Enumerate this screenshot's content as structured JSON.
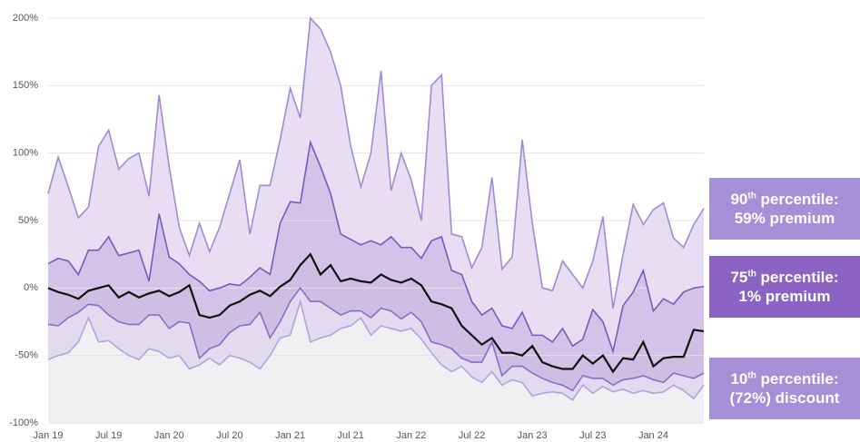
{
  "chart_data": {
    "type": "band-line",
    "categories": [
      "Jan 19",
      null,
      null,
      null,
      null,
      null,
      "Jul 19",
      null,
      null,
      null,
      null,
      null,
      "Jan 20",
      null,
      null,
      null,
      null,
      null,
      "Jul 20",
      null,
      null,
      null,
      null,
      null,
      "Jan 21",
      null,
      null,
      null,
      null,
      null,
      "Jul 21",
      null,
      null,
      null,
      null,
      null,
      "Jan 22",
      null,
      null,
      null,
      null,
      null,
      "Jul 22",
      null,
      null,
      null,
      null,
      null,
      "Jan 23",
      null,
      null,
      null,
      null,
      null,
      "Jul 23",
      null,
      null,
      null,
      null,
      null,
      "Jan 24",
      null,
      null,
      null,
      null,
      null
    ],
    "ylim": [
      -100,
      200
    ],
    "yticks": [
      {
        "value": -100,
        "label": "-100%"
      },
      {
        "value": -50,
        "label": "-50%"
      },
      {
        "value": 0,
        "label": "0%"
      },
      {
        "value": 50,
        "label": "50%"
      },
      {
        "value": 100,
        "label": "100%"
      },
      {
        "value": 150,
        "label": "150%"
      },
      {
        "value": 200,
        "label": "200%"
      }
    ],
    "grid": true,
    "series": [
      {
        "color": "#a28ad2",
        "fill": "#e8def3",
        "values": [
          70,
          97,
          75,
          52,
          60,
          105,
          117,
          88,
          96,
          100,
          68,
          143,
          90,
          45,
          24,
          48,
          27,
          45,
          70,
          95,
          40,
          76,
          76,
          110,
          148,
          126,
          200,
          192,
          175,
          150,
          105,
          75,
          100,
          161,
          72,
          100,
          80,
          50,
          150,
          158,
          40,
          38,
          15,
          30,
          82,
          14,
          23,
          110,
          48,
          0,
          -2,
          20,
          10,
          0,
          20,
          53,
          -15,
          25,
          62,
          47,
          58,
          63,
          37,
          30,
          47,
          59
        ]
      },
      {
        "color": "#7d58bb",
        "fill": "#d3c3e9",
        "values": [
          18,
          22,
          20,
          10,
          28,
          28,
          38,
          24,
          26,
          28,
          5,
          55,
          23,
          18,
          10,
          5,
          -2,
          0,
          3,
          2,
          8,
          15,
          10,
          48,
          64,
          63,
          108,
          90,
          70,
          40,
          36,
          32,
          35,
          32,
          38,
          30,
          30,
          22,
          35,
          38,
          13,
          10,
          -10,
          -20,
          -15,
          -28,
          -30,
          -18,
          -35,
          -35,
          -40,
          -30,
          -43,
          -38,
          -16,
          -25,
          -47,
          -13,
          -3,
          13,
          -17,
          -8,
          -12,
          -3,
          0,
          1
        ]
      },
      {
        "color": "#111111",
        "fill": "#cdbfe3",
        "values": [
          0,
          -3,
          -5,
          -8,
          -2,
          0,
          2,
          -7,
          -3,
          -7,
          -4,
          -2,
          -6,
          -3,
          2,
          -20,
          -22,
          -20,
          -13,
          -10,
          -5,
          -2,
          -6,
          1,
          6,
          17,
          25,
          10,
          17,
          5,
          7,
          5,
          4,
          10,
          6,
          4,
          7,
          2,
          -10,
          -12,
          -15,
          -28,
          -35,
          -42,
          -37,
          -48,
          -48,
          -50,
          -43,
          -55,
          -58,
          -60,
          -60,
          -50,
          -56,
          -50,
          -62,
          -52,
          -53,
          -40,
          -58,
          -52,
          -51,
          -51,
          -31,
          -32
        ]
      },
      {
        "color": "#8b6cc6",
        "fill": "#e2daef",
        "values": [
          -27,
          -28,
          -22,
          -18,
          -12,
          -13,
          -20,
          -25,
          -27,
          -27,
          -20,
          -20,
          -30,
          -25,
          -26,
          -52,
          -45,
          -42,
          -33,
          -28,
          -27,
          -18,
          -37,
          -25,
          -10,
          0,
          -10,
          -10,
          -15,
          -20,
          -17,
          -17,
          -22,
          -15,
          -17,
          -23,
          -18,
          -25,
          -40,
          -42,
          -45,
          -52,
          -55,
          -55,
          -40,
          -65,
          -58,
          -58,
          -63,
          -67,
          -70,
          -72,
          -76,
          -65,
          -67,
          -67,
          -72,
          -68,
          -67,
          -65,
          -68,
          -70,
          -63,
          -65,
          -67,
          -63
        ]
      },
      {
        "color": "#b3a3db",
        "fill": "#f0f0f3",
        "values": [
          -53,
          -50,
          -48,
          -40,
          -22,
          -40,
          -39,
          -45,
          -50,
          -53,
          -45,
          -47,
          -52,
          -50,
          -60,
          -57,
          -52,
          -57,
          -50,
          -52,
          -55,
          -60,
          -50,
          -37,
          -35,
          -10,
          -40,
          -37,
          -35,
          -30,
          -28,
          -22,
          -35,
          -28,
          -30,
          -32,
          -30,
          -38,
          -48,
          -57,
          -62,
          -58,
          -66,
          -70,
          -62,
          -72,
          -68,
          -70,
          -80,
          -78,
          -77,
          -78,
          -83,
          -72,
          -78,
          -73,
          -77,
          -75,
          -78,
          -76,
          -78,
          -77,
          -72,
          -76,
          -82,
          -72
        ]
      }
    ],
    "annotations": [
      {
        "number": "90",
        "suffix": "th",
        "text": " percentile:",
        "detail": "59% premium",
        "color": "#a58fd6"
      },
      {
        "number": "75",
        "suffix": "th",
        "text": " percentile:",
        "detail": "1% premium",
        "color": "#8a63c4"
      },
      {
        "number": "10",
        "suffix": "th",
        "text": " percentile:",
        "detail": "(72%) discount",
        "color": "#a58fd6"
      }
    ]
  }
}
